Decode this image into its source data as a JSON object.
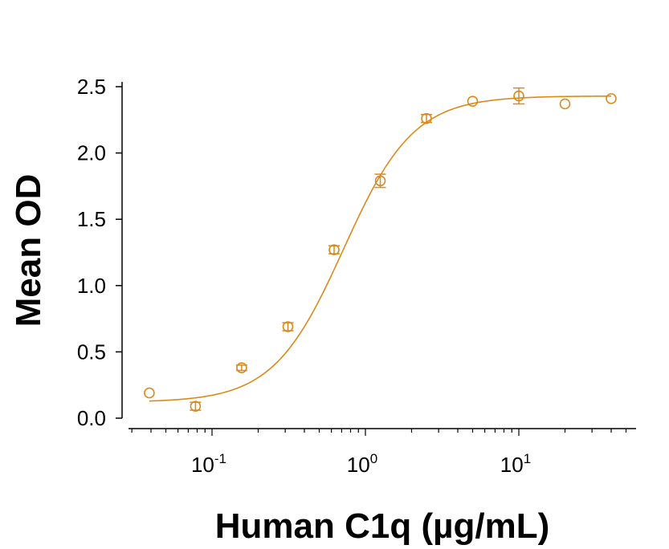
{
  "chart_data": {
    "type": "scatter",
    "title": "",
    "xlabel": "Human C1q (µg/mL)",
    "ylabel": "Mean OD",
    "xscale": "log",
    "xlim": [
      0.03,
      55
    ],
    "ylim": [
      0,
      2.5
    ],
    "grid": false,
    "color": "#D98A1E",
    "y_ticks": [
      "0.0",
      "0.5",
      "1.0",
      "1.5",
      "2.0",
      "2.5"
    ],
    "y_tick_values": [
      0,
      0.5,
      1.0,
      1.5,
      2.0,
      2.5
    ],
    "x_ticks": [
      {
        "value": 0.1,
        "base": "10",
        "exponent": "-1"
      },
      {
        "value": 1,
        "base": "10",
        "exponent": "0"
      },
      {
        "value": 10,
        "base": "10",
        "exponent": "1"
      }
    ],
    "points": [
      {
        "x": 0.039,
        "y": 0.19,
        "err": 0.0
      },
      {
        "x": 0.078,
        "y": 0.09,
        "err": 0.03
      },
      {
        "x": 0.156,
        "y": 0.38,
        "err": 0.02
      },
      {
        "x": 0.3125,
        "y": 0.69,
        "err": 0.03
      },
      {
        "x": 0.625,
        "y": 1.27,
        "err": 0.03
      },
      {
        "x": 1.25,
        "y": 1.79,
        "err": 0.05
      },
      {
        "x": 2.5,
        "y": 2.26,
        "err": 0.03
      },
      {
        "x": 5,
        "y": 2.39,
        "err": 0.0
      },
      {
        "x": 10,
        "y": 2.43,
        "err": 0.06
      },
      {
        "x": 20,
        "y": 2.37,
        "err": 0.0
      },
      {
        "x": 40,
        "y": 2.41,
        "err": 0.0
      }
    ],
    "fit": {
      "model": "4PL",
      "bottom": 0.12,
      "top": 2.43,
      "ec50": 0.72,
      "hill": 1.9
    }
  }
}
